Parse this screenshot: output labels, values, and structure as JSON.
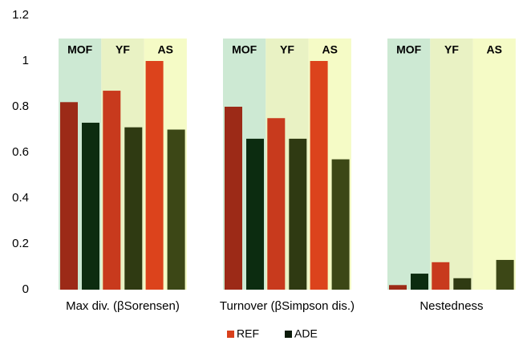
{
  "chart_data": {
    "type": "grouped-bar",
    "groups": [
      "Max div. (βSorensen)",
      "Turnover (βSimpson dis.)",
      "Nestedness"
    ],
    "subgroups": [
      {
        "name": "MOF",
        "background": "#cde9d3"
      },
      {
        "name": "YF",
        "background": "#e9f2c4"
      },
      {
        "name": "AS",
        "background": "#f5fbc6"
      }
    ],
    "series": [
      {
        "name": "REF",
        "color": "#d9401c",
        "colors": [
          "#9c2a17",
          "#c83a1d",
          "#dc431c"
        ],
        "values": [
          [
            0.82,
            0.87,
            1
          ],
          [
            0.8,
            0.75,
            1
          ],
          [
            0.02,
            0.12,
            0
          ]
        ]
      },
      {
        "name": "ADE",
        "color": "#0c1a0a",
        "colors": [
          "#0c2c10",
          "#2f3a12",
          "#3c4716"
        ],
        "values": [
          [
            0.73,
            0.71,
            0.7
          ],
          [
            0.66,
            0.66,
            0.57
          ],
          [
            0.07,
            0.05,
            0.13
          ]
        ]
      }
    ],
    "ylim": [
      0,
      1.2
    ],
    "yticks": [
      0,
      0.2,
      0.4,
      0.6,
      0.8,
      1,
      1.2
    ],
    "grid": false
  }
}
